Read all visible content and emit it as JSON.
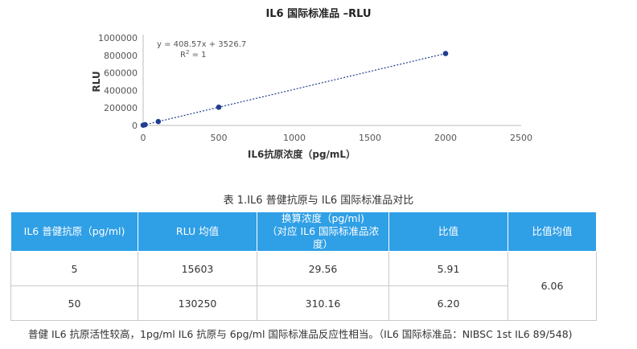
{
  "chart_data": {
    "type": "scatter",
    "title": "IL6 国际标准品 –RLU",
    "xlabel": "IL6抗原浓度（pg/mL）",
    "ylabel": "RLU",
    "xlim": [
      0,
      2500
    ],
    "ylim": [
      0,
      1000000
    ],
    "x_ticks": [
      "0",
      "500",
      "1000",
      "1500",
      "2000",
      "2500"
    ],
    "y_ticks": [
      "0",
      "200000",
      "400000",
      "600000",
      "800000",
      "1000000"
    ],
    "points": [
      {
        "x": 0,
        "y": 3500
      },
      {
        "x": 12.5,
        "y": 8600
      },
      {
        "x": 100,
        "y": 44400
      },
      {
        "x": 500,
        "y": 207800
      },
      {
        "x": 2000,
        "y": 820700
      }
    ],
    "trendline": {
      "equation": "y = 408.57x + 3526.7",
      "r2_label": "R",
      "r2_sup": "2",
      "r2_value": " = 1",
      "slope": 408.57,
      "intercept": 3526.7
    },
    "point_color": "#1f3e8f",
    "grid": false
  },
  "table": {
    "caption": "表 1.IL6 普健抗原与 IL6 国际标准品对比",
    "headers": [
      [
        "IL6 普健抗原（pg/ml)"
      ],
      [
        "RLU 均值"
      ],
      [
        "换算浓度（pg/ml)",
        "（对应 IL6 国际标准品浓度）"
      ],
      [
        "比值"
      ],
      [
        "比值均值"
      ]
    ],
    "rows": [
      [
        "5",
        "15603",
        "29.56",
        "5.91"
      ],
      [
        "50",
        "130250",
        "310.16",
        "6.20"
      ]
    ],
    "mean_ratio": "6.06",
    "header_color": "#2f9fe6"
  },
  "footnote": "普健 IL6 抗原活性较高，1pg/ml IL6 抗原与 6pg/ml 国际标准品反应性相当。（IL6 国际标准品：NIBSC 1st IL6 89/548)"
}
